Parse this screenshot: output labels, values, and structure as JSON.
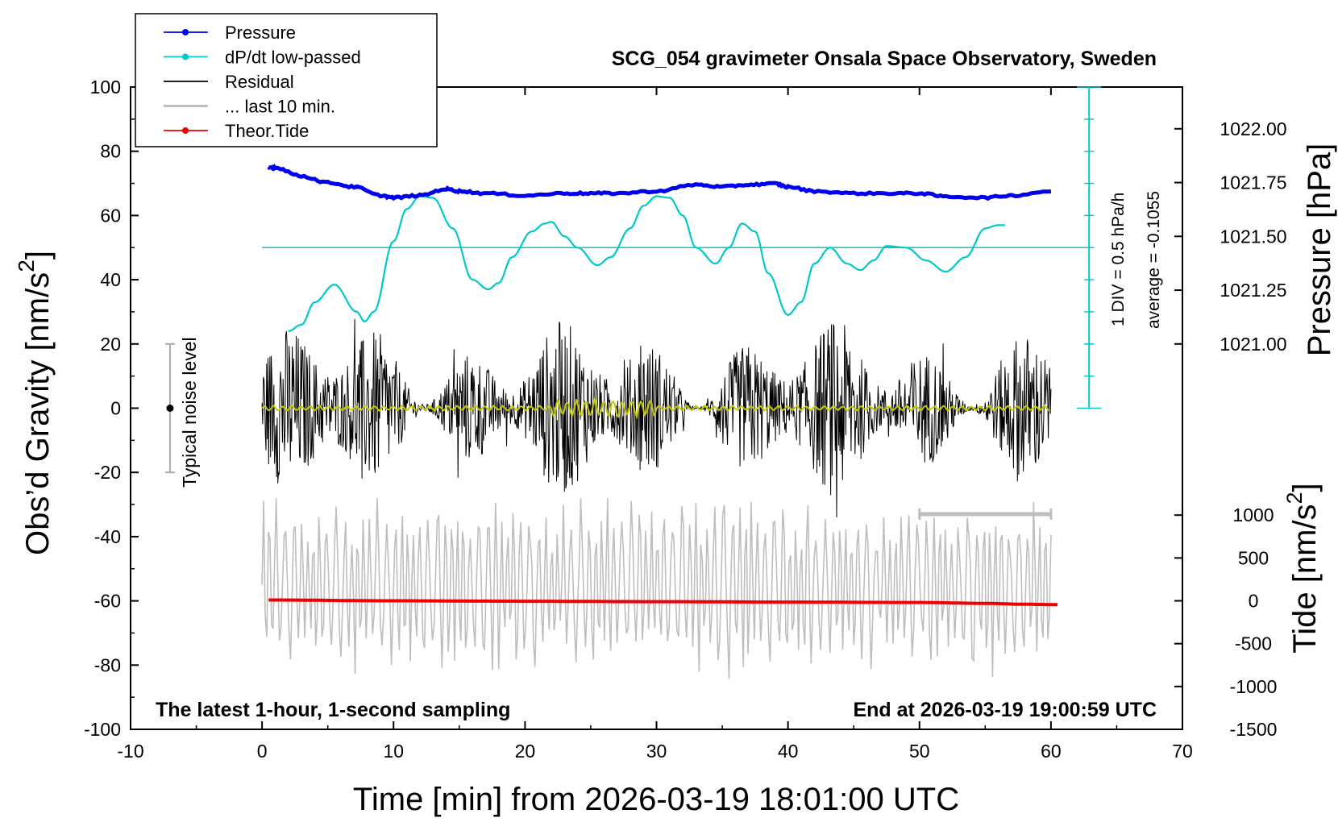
{
  "chart_data": {
    "type": "line",
    "title": "SCG_054 gravimeter Onsala Space Observatory, Sweden",
    "xlabel": "Time [min] from 2026-03-19 18:01:00 UTC",
    "ylabel_prefix": "Obs’d Gravity [nm/s",
    "ylabel_sup": "2",
    "ylabel_suffix": "]",
    "pressure_axis_label": "Pressure [hPa]",
    "tide_axis_label_prefix": "Tide [nm/s",
    "tide_axis_label_sup": "2",
    "tide_axis_label_suffix": "]",
    "xlim": [
      -10,
      70
    ],
    "ylim": [
      -100,
      100
    ],
    "x_ticks": [
      -10,
      0,
      10,
      20,
      30,
      40,
      50,
      60,
      70
    ],
    "y_ticks": [
      -100,
      -80,
      -60,
      -40,
      -20,
      0,
      20,
      40,
      60,
      80,
      100
    ],
    "pressure_ticks": [
      "1021.00",
      "1021.25",
      "1021.50",
      "1021.75",
      "1022.00"
    ],
    "pressure_tick_values": [
      1021.0,
      1021.25,
      1021.5,
      1021.75,
      1022.0
    ],
    "pressure_range": [
      1020.75,
      1022.25
    ],
    "tide_ticks": [
      "-1500",
      "-1000",
      "-500",
      "0",
      "500",
      "1000"
    ],
    "tide_tick_values": [
      -1500,
      -1000,
      -500,
      0,
      500,
      1000
    ],
    "tide_range": [
      -1500,
      1000
    ],
    "grid": false,
    "legend_position": "top-left",
    "legend": [
      {
        "name": "Pressure",
        "color": "#0000ee",
        "marker": true
      },
      {
        "name": "dP/dt low-passed",
        "color": "#00c8c8",
        "marker": true
      },
      {
        "name": "Residual",
        "color": "#000000",
        "marker": false
      },
      {
        "name": "... last 10 min.",
        "color": "#bebebe",
        "marker": false
      },
      {
        "name": "Theor.Tide",
        "color": "#ee0000",
        "marker": true
      }
    ],
    "annotations": {
      "bottom_left": "The latest 1-hour, 1-second sampling",
      "bottom_right": "End at 2026-03-19 19:00:59 UTC",
      "noise": "Typical noise level",
      "div": "1 DIV = 0.5 hPa/h",
      "average": "average = -0.1055"
    },
    "noise_bar": {
      "x": -7,
      "center": 0,
      "half_range": 20
    },
    "dpdt_zero_gravity": 50,
    "series": [
      {
        "name": "Pressure",
        "color": "#0000ee",
        "units": "hPa",
        "x": [
          0.5,
          1,
          3,
          5,
          7,
          9,
          10,
          12,
          14,
          15,
          17,
          20,
          23,
          25,
          27,
          30,
          33,
          35,
          37,
          39,
          40,
          42,
          45,
          48,
          50,
          52,
          55,
          57,
          60
        ],
        "values": [
          1021.82,
          1021.82,
          1021.78,
          1021.75,
          1021.73,
          1021.69,
          1021.68,
          1021.69,
          1021.72,
          1021.71,
          1021.7,
          1021.69,
          1021.7,
          1021.7,
          1021.7,
          1021.71,
          1021.74,
          1021.73,
          1021.74,
          1021.745,
          1021.73,
          1021.71,
          1021.7,
          1021.7,
          1021.7,
          1021.685,
          1021.68,
          1021.69,
          1021.71
        ]
      },
      {
        "name": "dP/dt low-passed",
        "color": "#00c8c8",
        "units": "nm/s2 (plot scale)",
        "x": [
          2,
          3,
          4,
          5.5,
          7.2,
          7.8,
          8.5,
          10,
          11,
          12,
          13,
          14.5,
          16,
          17.2,
          18,
          19,
          20.5,
          21.5,
          22,
          23,
          24,
          25.5,
          26.5,
          28,
          29,
          30,
          31,
          32,
          33,
          34.5,
          35.5,
          36.5,
          37.5,
          38.5,
          40,
          41,
          42,
          43.2,
          44.5,
          45.5,
          46.5,
          47.5,
          49,
          50.5,
          52,
          53.5,
          55,
          56,
          56.5
        ],
        "values": [
          24,
          26,
          33,
          38.5,
          30,
          27,
          30,
          52,
          62,
          66,
          65.5,
          56,
          40,
          37,
          39,
          47,
          55,
          57.5,
          58,
          53.5,
          50,
          44.5,
          47,
          56,
          63,
          66,
          65.5,
          60,
          50,
          45,
          50,
          57.5,
          55,
          42,
          29,
          33,
          45,
          50,
          45,
          43,
          46,
          50.5,
          50,
          46,
          42.5,
          47,
          56,
          57,
          57
        ]
      },
      {
        "name": "Residual",
        "color": "#000000",
        "note": "1-second noisy residual, amplitude about ±30 nm/s2 around 0",
        "x_range": [
          0,
          60
        ]
      },
      {
        "name": "... last 10 min.",
        "color": "#bebebe",
        "note": "oscillation around about -55 nm/s2 on the plot scale",
        "x_range": [
          0,
          60
        ]
      },
      {
        "name": "Theor.Tide",
        "color": "#ee0000",
        "units": "nm/s2",
        "x": [
          0.5,
          10,
          20,
          30,
          40,
          50,
          55,
          58,
          60.5
        ],
        "values": [
          10,
          0,
          -5,
          -10,
          -15,
          -20,
          -30,
          -40,
          -45
        ]
      }
    ],
    "filtered_residual": {
      "color": "#c8c800",
      "note": "smoothed residual near 0"
    },
    "last10_bar": {
      "x": [
        50,
        60
      ],
      "gravity": -33
    }
  }
}
